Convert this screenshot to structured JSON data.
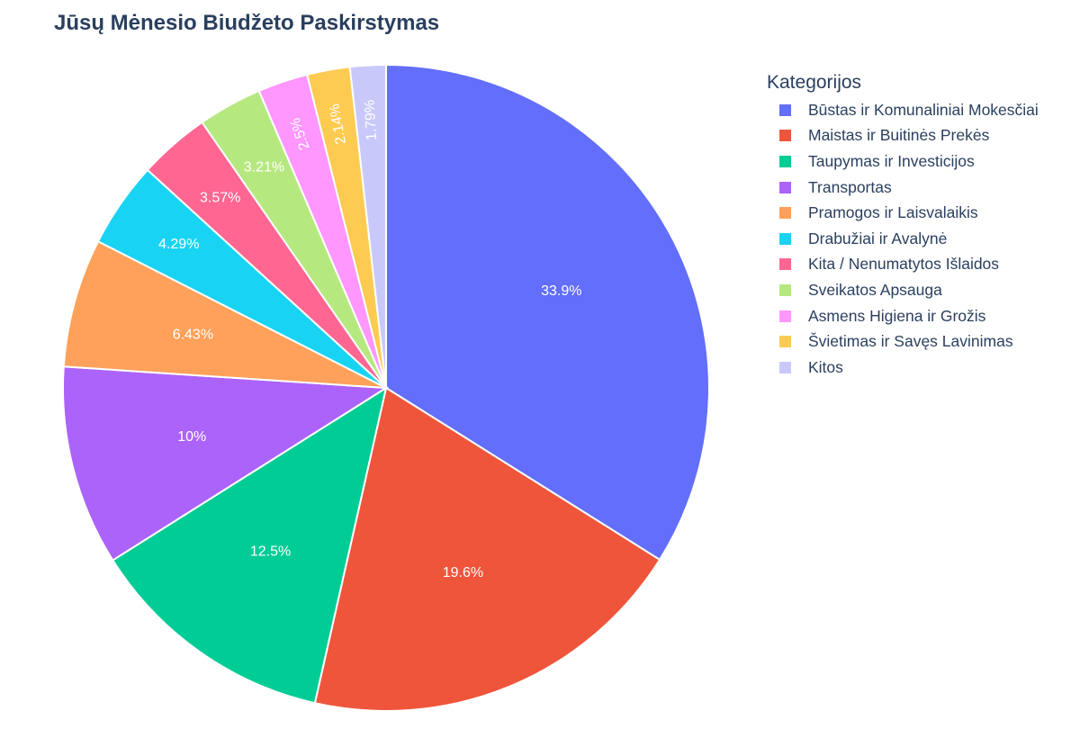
{
  "chart_data": {
    "type": "pie",
    "title": "Jūsų Mėnesio Biudžeto Paskirstymas",
    "legend_title": "Kategorijos",
    "legend_placement": "right",
    "sort": "descending",
    "direction": "clockwise",
    "slices": [
      {
        "label": "Būstas ir Komunaliniai Mokesčiai",
        "value": 33.9,
        "text": "33.9%",
        "color": "#636efa"
      },
      {
        "label": "Maistas ir Buitinės Prekės",
        "value": 19.6,
        "text": "19.6%",
        "color": "#ef553b"
      },
      {
        "label": "Taupymas ir Investicijos",
        "value": 12.5,
        "text": "12.5%",
        "color": "#00cc96"
      },
      {
        "label": "Transportas",
        "value": 10,
        "text": "10%",
        "color": "#ab63fa"
      },
      {
        "label": "Pramogos ir Laisvalaikis",
        "value": 6.43,
        "text": "6.43%",
        "color": "#ffa15a"
      },
      {
        "label": "Drabužiai ir Avalynė",
        "value": 4.29,
        "text": "4.29%",
        "color": "#19d3f3"
      },
      {
        "label": "Kita / Nenumatytos Išlaidos",
        "value": 3.57,
        "text": "3.57%",
        "color": "#ff6692"
      },
      {
        "label": "Sveikatos Apsauga",
        "value": 3.21,
        "text": "3.21%",
        "color": "#b6e880"
      },
      {
        "label": "Asmens Higiena ir Grožis",
        "value": 2.5,
        "text": "2.5%",
        "color": "#ff97ff"
      },
      {
        "label": "Švietimas ir Savęs Lavinimas",
        "value": 2.14,
        "text": "2.14%",
        "color": "#fecb52"
      },
      {
        "label": "Kitos",
        "value": 1.79,
        "text": "1.79%",
        "color": "#c8c9fa"
      }
    ]
  }
}
